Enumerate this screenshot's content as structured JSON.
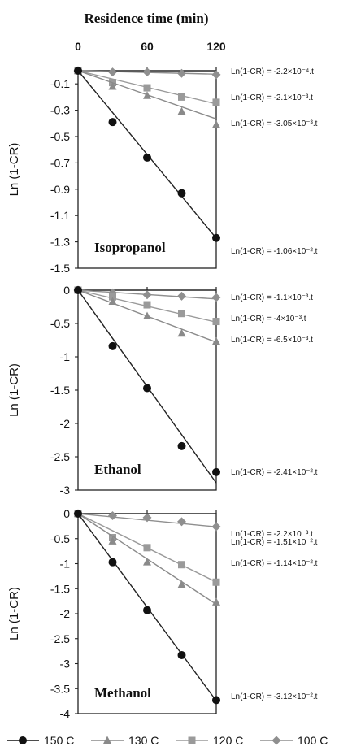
{
  "top_axis": {
    "title": "Residence time (min)",
    "ticks": [
      0,
      60,
      120
    ]
  },
  "legend": [
    {
      "label": "150 C",
      "marker": "circle",
      "color": "#111111"
    },
    {
      "label": "130 C",
      "marker": "triangle",
      "color": "#8a8a8a"
    },
    {
      "label": "120 C",
      "marker": "square",
      "color": "#9a9a9a"
    },
    {
      "label": "100 C",
      "marker": "diamond",
      "color": "#8f8f8f"
    }
  ],
  "chart_data": [
    {
      "type": "line",
      "panel_label": "Isopropanol",
      "xlabel": "",
      "ylabel": "Ln (1-CR)",
      "xlim": [
        0,
        120
      ],
      "ylim": [
        -1.5,
        0.0
      ],
      "yticks": [
        -0.1,
        -0.3,
        -0.5,
        -0.7,
        -0.9,
        -1.1,
        -1.3,
        -1.5
      ],
      "ytick_labels": [
        "-0.1",
        "-0.3",
        "-0.5",
        "-0.7",
        "-0.9",
        "-1.1",
        "-1.3",
        "-1.5"
      ],
      "x": [
        0,
        30,
        60,
        90,
        120
      ],
      "series": [
        {
          "name": "150 C",
          "points": [
            -0.0,
            -0.39,
            -0.66,
            -0.93,
            -1.27
          ],
          "slope": -0.0106,
          "equation": "Ln(1-CR) = -1.06×10⁻².t"
        },
        {
          "name": "130 C",
          "points": [
            -0.0,
            -0.12,
            -0.19,
            -0.31,
            -0.41
          ],
          "slope": -0.00305,
          "equation": "Ln(1-CR) = -3.05×10⁻³.t"
        },
        {
          "name": "120 C",
          "points": [
            -0.0,
            -0.09,
            -0.13,
            -0.2,
            -0.24
          ],
          "slope": -0.0021,
          "equation": "Ln(1-CR) = -2.1×10⁻³.t"
        },
        {
          "name": "100 C",
          "points": [
            0.0,
            -0.01,
            -0.01,
            -0.02,
            -0.03
          ],
          "slope": -0.00022,
          "equation": "Ln(1-CR) = -2.2×10⁻⁴.t"
        }
      ]
    },
    {
      "type": "line",
      "panel_label": "Ethanol",
      "xlabel": "",
      "ylabel": "Ln (1-CR)",
      "xlim": [
        0,
        120
      ],
      "ylim": [
        -3.0,
        0.0
      ],
      "yticks": [
        0,
        -0.5,
        -1,
        -1.5,
        -2,
        -2.5,
        -3
      ],
      "ytick_labels": [
        "0",
        "-0.5",
        "-1",
        "-1.5",
        "-2",
        "-2.5",
        "-3"
      ],
      "x": [
        0,
        30,
        60,
        90,
        120
      ],
      "series": [
        {
          "name": "150 C",
          "points": [
            0.0,
            -0.84,
            -1.47,
            -2.34,
            -2.73
          ],
          "slope": -0.0241,
          "equation": "Ln(1-CR) = -2.41×10⁻².t"
        },
        {
          "name": "130 C",
          "points": [
            0.0,
            -0.17,
            -0.39,
            -0.65,
            -0.77
          ],
          "slope": -0.0065,
          "equation": "Ln(1-CR) = -6.5×10⁻³.t"
        },
        {
          "name": "120 C",
          "points": [
            0.0,
            -0.1,
            -0.22,
            -0.35,
            -0.47
          ],
          "slope": -0.004,
          "equation": "Ln(1-CR) = -4×10⁻³.t"
        },
        {
          "name": "100 C",
          "points": [
            0.0,
            -0.04,
            -0.07,
            -0.09,
            -0.11
          ],
          "slope": -0.0011,
          "equation": "Ln(1-CR) = -1.1×10⁻³.t"
        }
      ]
    },
    {
      "type": "line",
      "panel_label": "Methanol",
      "xlabel": "",
      "ylabel": "Ln (1-CR)",
      "xlim": [
        0,
        120
      ],
      "ylim": [
        -4.0,
        0.0
      ],
      "yticks": [
        0,
        -0.5,
        -1,
        -1.5,
        -2,
        -2.5,
        -3,
        -3.5,
        -4
      ],
      "ytick_labels": [
        "0",
        "-0.5",
        "-1",
        "-1.5",
        "-2",
        "-2.5",
        "-3",
        "-3.5",
        "-4"
      ],
      "x": [
        0,
        30,
        60,
        90,
        120
      ],
      "series": [
        {
          "name": "150 C",
          "points": [
            0.0,
            -0.97,
            -1.93,
            -2.83,
            -3.73
          ],
          "slope": -0.0312,
          "equation": "Ln(1-CR) = -3.12×10⁻².t"
        },
        {
          "name": "130 C",
          "points": [
            0.0,
            -0.55,
            -0.97,
            -1.42,
            -1.77
          ],
          "slope": -0.0151,
          "equation": "Ln(1-CR) = -1.51×10⁻².t"
        },
        {
          "name": "120 C",
          "points": [
            0.0,
            -0.48,
            -0.68,
            -1.02,
            -1.37
          ],
          "slope": -0.0114,
          "equation": "Ln(1-CR) = -1.14×10⁻².t"
        },
        {
          "name": "100 C",
          "points": [
            0.0,
            -0.04,
            -0.08,
            -0.16,
            -0.26
          ],
          "slope": -0.0022,
          "equation": "Ln(1-CR) = -2.2×10⁻³.t"
        }
      ]
    }
  ]
}
